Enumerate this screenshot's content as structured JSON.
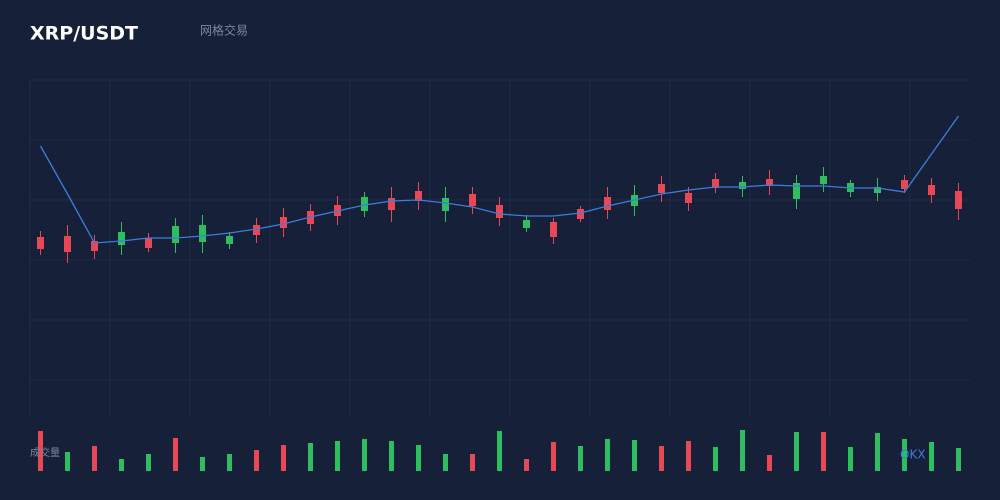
{
  "chart_data": {
    "type": "candlestick",
    "title": "XRP/USDT",
    "subtitle": "网格交易",
    "watermark": "OKX",
    "ylim": [
      0,
      340
    ],
    "grid": true,
    "up_color": "#2ebd5f",
    "down_color": "#e84855",
    "open": [
      183,
      184,
      179,
      175,
      182,
      177,
      178,
      176,
      195,
      203,
      209,
      215,
      209,
      222,
      229,
      209,
      226,
      215,
      192,
      198,
      211,
      223,
      214,
      236,
      227,
      241,
      231,
      241,
      221,
      236,
      228,
      227,
      240,
      235,
      229
    ],
    "high": [
      189,
      195,
      185,
      198,
      187,
      202,
      205,
      188,
      202,
      212,
      216,
      224,
      228,
      233,
      238,
      233,
      233,
      223,
      205,
      202,
      214,
      233,
      235,
      244,
      233,
      247,
      244,
      250,
      245,
      253,
      240,
      242,
      245,
      242,
      237
    ],
    "low": [
      165,
      157,
      161,
      165,
      168,
      167,
      167,
      171,
      177,
      183,
      189,
      195,
      203,
      198,
      210,
      198,
      206,
      194,
      188,
      176,
      198,
      201,
      204,
      218,
      209,
      227,
      223,
      225,
      211,
      228,
      223,
      219,
      227,
      217,
      200
    ],
    "close": [
      171,
      168,
      169,
      188,
      172,
      194,
      195,
      184,
      185,
      192,
      196,
      204,
      223,
      210,
      219,
      222,
      214,
      202,
      200,
      183,
      201,
      210,
      225,
      227,
      217,
      232,
      238,
      234,
      237,
      244,
      237,
      233,
      231,
      225,
      211
    ],
    "line": {
      "color": "#3b7ddd",
      "values": [
        274,
        226,
        177,
        179,
        182,
        182,
        184,
        187,
        191,
        196,
        203,
        209,
        215,
        219,
        220,
        217,
        213,
        206,
        204,
        204,
        207,
        214,
        220,
        226,
        230,
        233,
        233,
        235,
        234,
        234,
        232,
        232,
        228,
        266,
        304
      ]
    },
    "volume": {
      "name": "成交量",
      "vlim": [
        0,
        41
      ],
      "values": [
        40,
        19,
        25,
        12,
        17,
        33,
        14,
        17,
        21,
        26,
        28,
        30,
        32,
        30,
        26,
        17,
        17,
        40,
        12,
        29,
        25,
        32,
        31,
        25,
        30,
        24,
        41,
        16,
        39,
        39,
        24,
        38,
        32,
        29,
        23
      ],
      "colors": [
        "#e84855",
        "#2ebd5f",
        "#e84855",
        "#2ebd5f",
        "#2ebd5f",
        "#e84855",
        "#2ebd5f",
        "#2ebd5f",
        "#e84855",
        "#e84855",
        "#2ebd5f",
        "#2ebd5f",
        "#2ebd5f",
        "#2ebd5f",
        "#2ebd5f",
        "#2ebd5f",
        "#e84855",
        "#2ebd5f",
        "#e84855",
        "#e84855",
        "#2ebd5f",
        "#2ebd5f",
        "#2ebd5f",
        "#e84855",
        "#e84855",
        "#2ebd5f",
        "#2ebd5f",
        "#e84855",
        "#2ebd5f",
        "#e84855",
        "#2ebd5f",
        "#2ebd5f",
        "#2ebd5f",
        "#2ebd5f",
        "#2ebd5f"
      ]
    }
  }
}
